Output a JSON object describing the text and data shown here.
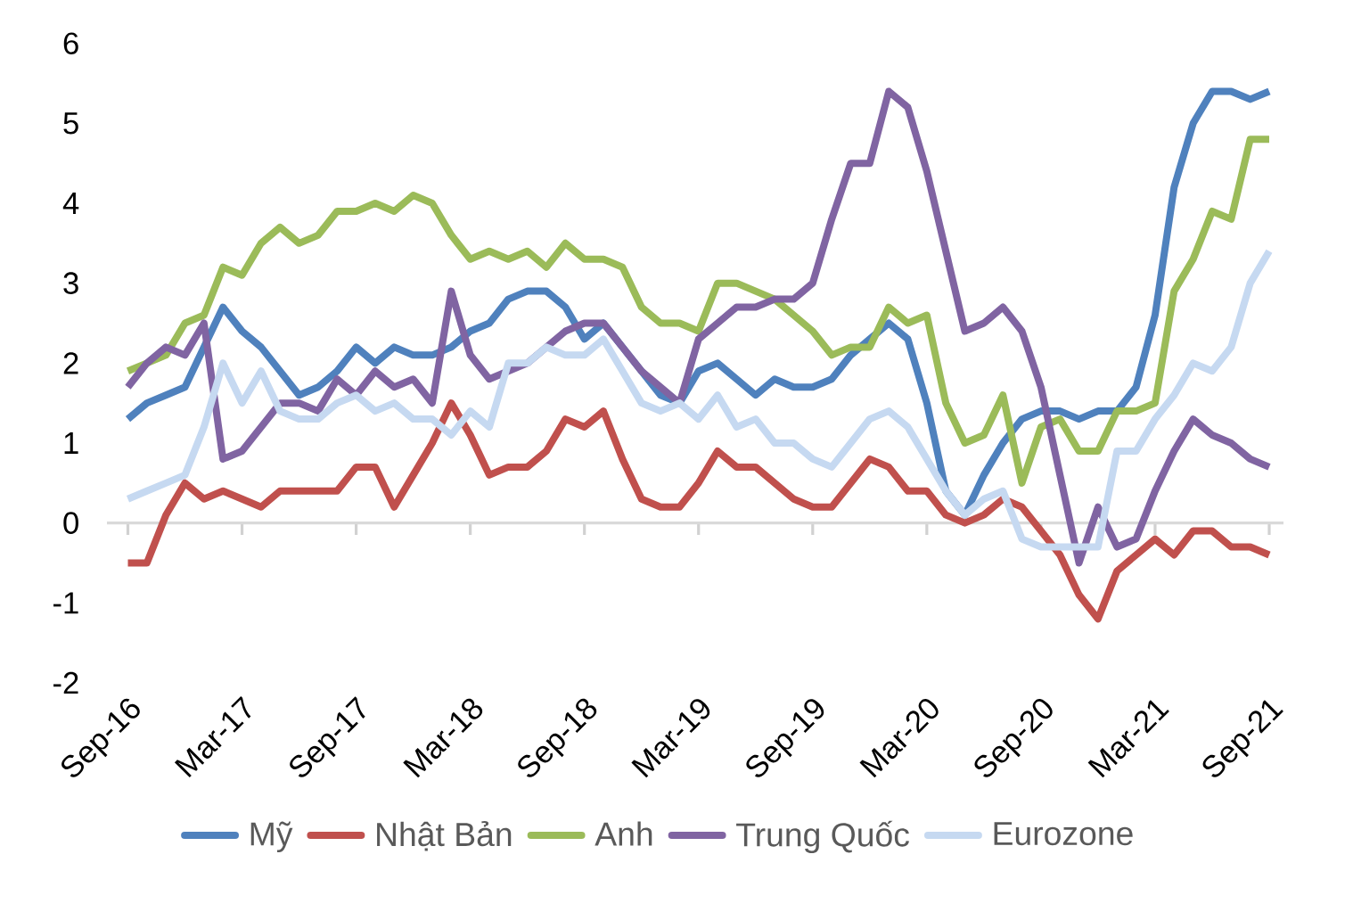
{
  "chart_data": {
    "type": "line",
    "categories": [
      "Sep-16",
      null,
      null,
      null,
      null,
      null,
      "Mar-17",
      null,
      null,
      null,
      null,
      null,
      "Sep-17",
      null,
      null,
      null,
      null,
      null,
      "Mar-18",
      null,
      null,
      null,
      null,
      null,
      "Sep-18",
      null,
      null,
      null,
      null,
      null,
      "Mar-19",
      null,
      null,
      null,
      null,
      null,
      "Sep-19",
      null,
      null,
      null,
      null,
      null,
      "Mar-20",
      null,
      null,
      null,
      null,
      null,
      "Sep-20",
      null,
      null,
      null,
      null,
      null,
      "Mar-21",
      null,
      null,
      null,
      null,
      null,
      "Sep-21"
    ],
    "series": [
      {
        "name": "Mỹ",
        "color": "#4f81bd",
        "values": [
          1.3,
          1.5,
          1.6,
          1.7,
          2.2,
          2.7,
          2.4,
          2.2,
          1.9,
          1.6,
          1.7,
          1.9,
          2.2,
          2.0,
          2.2,
          2.1,
          2.1,
          2.2,
          2.4,
          2.5,
          2.8,
          2.9,
          2.9,
          2.7,
          2.3,
          2.5,
          2.2,
          1.9,
          1.6,
          1.5,
          1.9,
          2.0,
          1.8,
          1.6,
          1.8,
          1.7,
          1.7,
          1.8,
          2.1,
          2.3,
          2.5,
          2.3,
          1.5,
          0.4,
          0.1,
          0.6,
          1.0,
          1.3,
          1.4,
          1.4,
          1.3,
          1.4,
          1.4,
          1.7,
          2.6,
          4.2,
          5.0,
          5.4,
          5.4,
          5.3,
          5.4
        ]
      },
      {
        "name": "Nhật Bản",
        "color": "#c0504d",
        "values": [
          -0.5,
          -0.5,
          0.1,
          0.5,
          0.3,
          0.4,
          0.3,
          0.2,
          0.4,
          0.4,
          0.4,
          0.4,
          0.7,
          0.7,
          0.2,
          0.6,
          1.0,
          1.5,
          1.1,
          0.6,
          0.7,
          0.7,
          0.9,
          1.3,
          1.2,
          1.4,
          0.8,
          0.3,
          0.2,
          0.2,
          0.5,
          0.9,
          0.7,
          0.7,
          0.5,
          0.3,
          0.2,
          0.2,
          0.5,
          0.8,
          0.7,
          0.4,
          0.4,
          0.1,
          0.0,
          0.1,
          0.3,
          0.2,
          -0.1,
          -0.4,
          -0.9,
          -1.2,
          -0.6,
          -0.4,
          -0.2,
          -0.4,
          -0.1,
          -0.1,
          -0.3,
          -0.3,
          -0.4
        ]
      },
      {
        "name": "Anh",
        "color": "#9bbb59",
        "values": [
          1.9,
          2.0,
          2.1,
          2.5,
          2.6,
          3.2,
          3.1,
          3.5,
          3.7,
          3.5,
          3.6,
          3.9,
          3.9,
          4.0,
          3.9,
          4.1,
          4.0,
          3.6,
          3.3,
          3.4,
          3.3,
          3.4,
          3.2,
          3.5,
          3.3,
          3.3,
          3.2,
          2.7,
          2.5,
          2.5,
          2.4,
          3.0,
          3.0,
          2.9,
          2.8,
          2.6,
          2.4,
          2.1,
          2.2,
          2.2,
          2.7,
          2.5,
          2.6,
          1.5,
          1.0,
          1.1,
          1.6,
          0.5,
          1.2,
          1.3,
          0.9,
          0.9,
          1.4,
          1.4,
          1.5,
          2.9,
          3.3,
          3.9,
          3.8,
          4.8,
          4.8
        ]
      },
      {
        "name": "Trung Quốc",
        "color": "#8064a2",
        "values": [
          1.7,
          2.0,
          2.2,
          2.1,
          2.5,
          0.8,
          0.9,
          1.2,
          1.5,
          1.5,
          1.4,
          1.8,
          1.6,
          1.9,
          1.7,
          1.8,
          1.5,
          2.9,
          2.1,
          1.8,
          1.9,
          2.0,
          2.2,
          2.4,
          2.5,
          2.5,
          2.2,
          1.9,
          1.7,
          1.5,
          2.3,
          2.5,
          2.7,
          2.7,
          2.8,
          2.8,
          3.0,
          3.8,
          4.5,
          4.5,
          5.4,
          5.2,
          4.4,
          3.4,
          2.4,
          2.5,
          2.7,
          2.4,
          1.7,
          0.6,
          -0.5,
          0.2,
          -0.3,
          -0.2,
          0.4,
          0.9,
          1.3,
          1.1,
          1.0,
          0.8,
          0.7
        ]
      },
      {
        "name": "Eurozone",
        "color": "#c6d9f1",
        "values": [
          0.3,
          0.4,
          0.5,
          0.6,
          1.2,
          2.0,
          1.5,
          1.9,
          1.4,
          1.3,
          1.3,
          1.5,
          1.6,
          1.4,
          1.5,
          1.3,
          1.3,
          1.1,
          1.4,
          1.2,
          2.0,
          2.0,
          2.2,
          2.1,
          2.1,
          2.3,
          1.9,
          1.5,
          1.4,
          1.5,
          1.3,
          1.6,
          1.2,
          1.3,
          1.0,
          1.0,
          0.8,
          0.7,
          1.0,
          1.3,
          1.4,
          1.2,
          0.8,
          0.4,
          0.1,
          0.3,
          0.4,
          -0.2,
          -0.3,
          -0.3,
          -0.3,
          -0.3,
          0.9,
          0.9,
          1.3,
          1.6,
          2.0,
          1.9,
          2.2,
          3.0,
          3.4
        ]
      }
    ],
    "ylim": [
      -2,
      6
    ],
    "yticks": [
      -2,
      -1,
      0,
      1,
      2,
      3,
      4,
      5,
      6
    ],
    "ref_lines": [
      {
        "axis": "y",
        "value": 0,
        "color": "#d9d9d9"
      }
    ],
    "grid": false,
    "legend": "bottom",
    "marker": "none",
    "line_style": "solid"
  }
}
